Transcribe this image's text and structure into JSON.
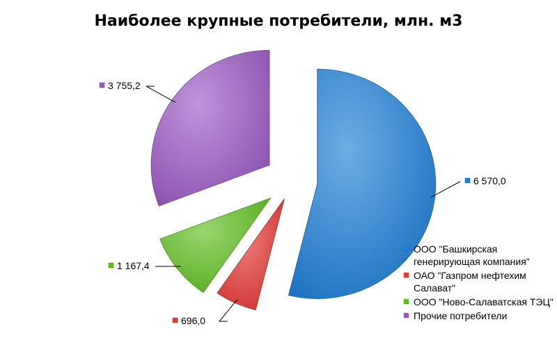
{
  "chart_data": {
    "type": "pie",
    "title": "Наиболее крупные потребители, млн. м3",
    "categories": [
      "ООО \"Башкирская генерирующая компания\"",
      "ОАО \"Газпром нефтехим Салават\"",
      "ООО \"Ново-Салаватская ТЭЦ\"",
      "Прочие потребители"
    ],
    "values": [
      6570.0,
      696.0,
      1167.4,
      3755.2
    ],
    "value_labels": [
      "6 570,0",
      "696,0",
      "1 167,4",
      "3 755,2"
    ],
    "colors": [
      "#1f7fd6",
      "#e53935",
      "#5fbf20",
      "#9b5ac4"
    ],
    "legend_position": "right",
    "exploded": true
  }
}
